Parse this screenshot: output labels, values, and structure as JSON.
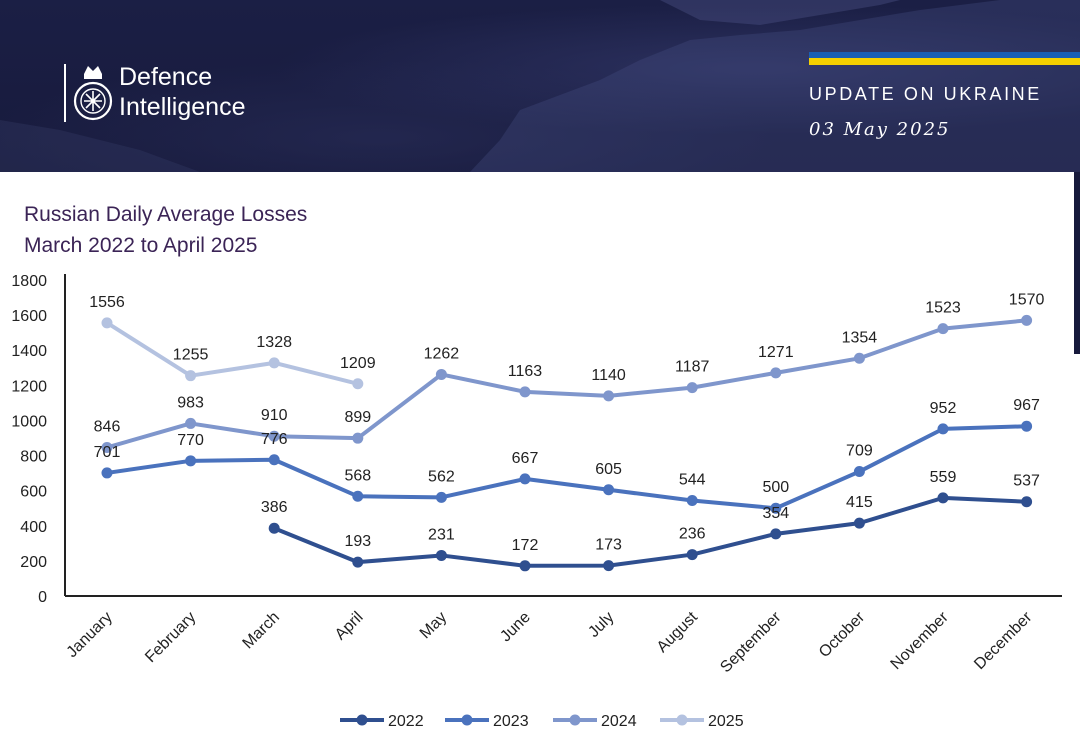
{
  "header": {
    "org_line1": "Defence",
    "org_line2": "Intelligence",
    "update_label": "UPDATE ON UKRAINE",
    "date": "03 May 2025"
  },
  "colors": {
    "banner": "#1b1f45",
    "ukraine_blue": "#1a5fb4",
    "ukraine_yellow": "#f5d000",
    "title": "#3b2456",
    "s2022": "#2f4f8f",
    "s2023": "#4a72bd",
    "s2024": "#7f96cc",
    "s2025": "#b4c2e0"
  },
  "chart_data": {
    "type": "line",
    "title": "Russian Daily Average Losses",
    "subtitle": "March 2022 to April 2025",
    "categories": [
      "January",
      "February",
      "March",
      "April",
      "May",
      "June",
      "July",
      "August",
      "September",
      "October",
      "November",
      "December"
    ],
    "ylim": [
      0,
      1800
    ],
    "yticks": [
      0,
      200,
      400,
      600,
      800,
      1000,
      1200,
      1400,
      1600,
      1800
    ],
    "grid": false,
    "legend_position": "bottom",
    "series": [
      {
        "name": "2022",
        "color": "#2f4f8f",
        "values": [
          null,
          null,
          386,
          193,
          231,
          172,
          173,
          236,
          354,
          415,
          559,
          537
        ]
      },
      {
        "name": "2023",
        "color": "#4a72bd",
        "values": [
          701,
          770,
          776,
          568,
          562,
          667,
          605,
          544,
          500,
          709,
          952,
          967
        ]
      },
      {
        "name": "2024",
        "color": "#7f96cc",
        "values": [
          846,
          983,
          910,
          899,
          1262,
          1163,
          1140,
          1187,
          1271,
          1354,
          1523,
          1570
        ]
      },
      {
        "name": "2025",
        "color": "#b4c2e0",
        "values": [
          1556,
          1255,
          1328,
          1209,
          null,
          null,
          null,
          null,
          null,
          null,
          null,
          null
        ]
      }
    ]
  }
}
